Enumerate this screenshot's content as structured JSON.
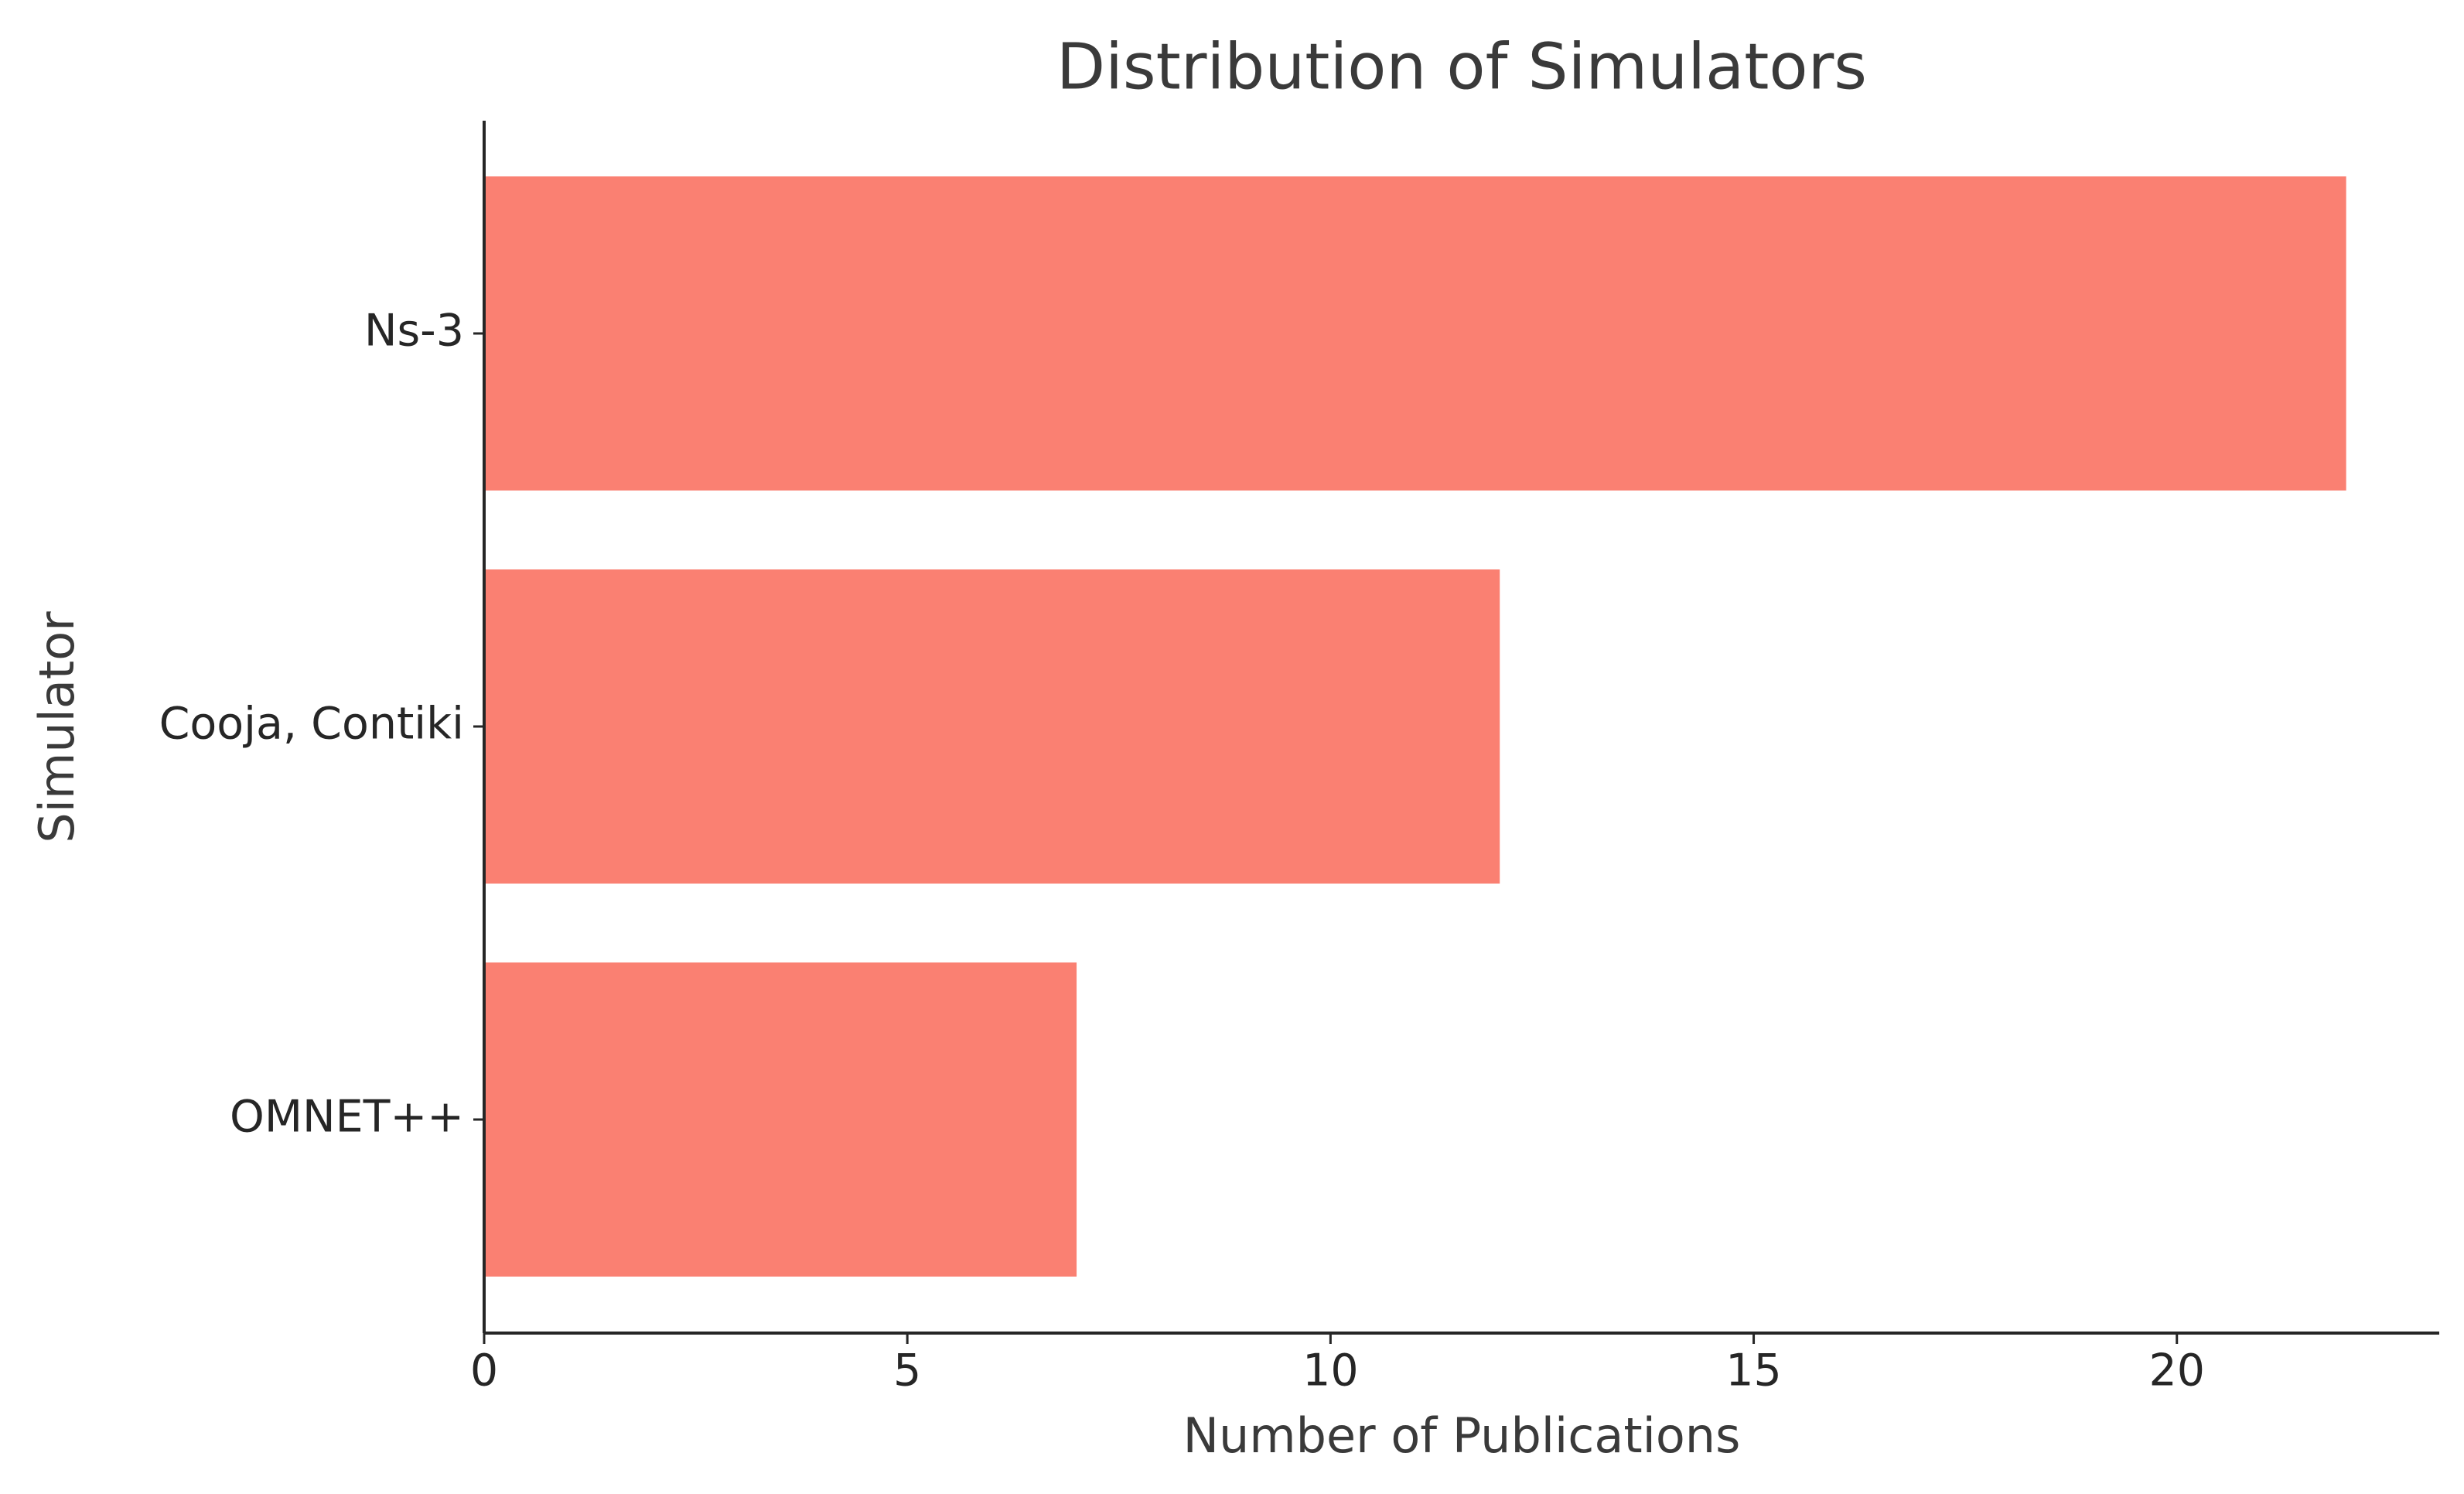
{
  "chart_data": {
    "type": "barh",
    "title": "Distribution of Simulators",
    "x_label": "Number of Publications",
    "y_label": "Simulator",
    "categories": [
      "Ns-3",
      "Cooja, Contiki",
      "OMNET++"
    ],
    "values": [
      22,
      12,
      7
    ],
    "color": "#fa8072",
    "xlim": [
      0,
      23.1
    ],
    "xticks": [
      0,
      5,
      10,
      15,
      20
    ],
    "grid": false
  }
}
